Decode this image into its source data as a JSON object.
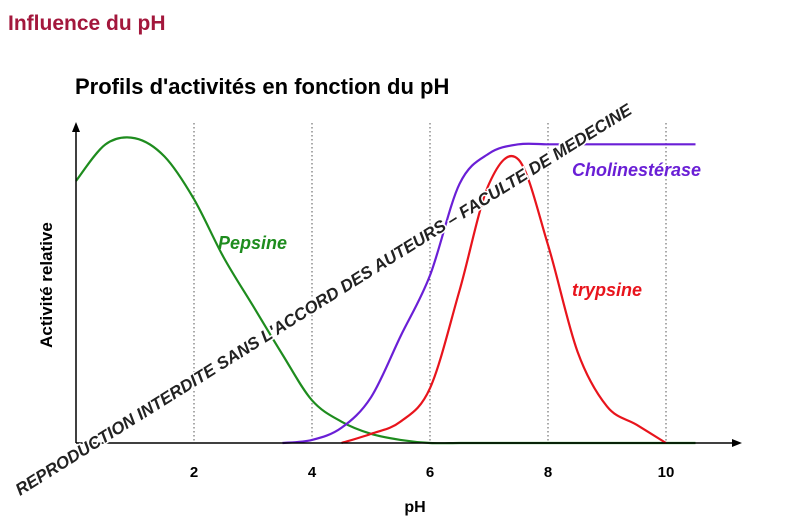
{
  "heading": "Influence du pH",
  "watermark": "REPRODUCTION INTERDITE SANS L'ACCORD DES AUTEURS – FACULTE DE MEDECINE",
  "chart_data": {
    "type": "line",
    "title": "Profils d'activités en fonction du pH",
    "x_label": "pH",
    "y_label": "Activité relative",
    "x": [
      0,
      0.5,
      1,
      1.5,
      2,
      2.5,
      3,
      3.5,
      4,
      4.5,
      5,
      5.5,
      6,
      6.5,
      7,
      7.5,
      8,
      8.5,
      9,
      9.5,
      10,
      10.5
    ],
    "series": [
      {
        "name": "Pepsine",
        "color": "#1e8c1e",
        "values": [
          0.86,
          0.98,
          1.0,
          0.94,
          0.8,
          0.61,
          0.45,
          0.29,
          0.14,
          0.07,
          0.03,
          0.01,
          0,
          0,
          0,
          0,
          0,
          0,
          0,
          0,
          0,
          0
        ]
      },
      {
        "name": "Cholinestérase",
        "color": "#6a1fd6",
        "values": [
          null,
          null,
          null,
          null,
          null,
          null,
          null,
          0,
          0.01,
          0.05,
          0.15,
          0.35,
          0.55,
          0.85,
          0.95,
          0.98,
          0.98,
          0.98,
          0.98,
          0.98,
          0.98,
          0.98
        ]
      },
      {
        "name": "trypsine",
        "color": "#e8141c",
        "values": [
          null,
          null,
          null,
          null,
          null,
          null,
          null,
          null,
          null,
          0,
          0.03,
          0.07,
          0.18,
          0.5,
          0.85,
          0.93,
          0.65,
          0.3,
          0.12,
          0.06,
          0,
          null
        ]
      }
    ],
    "xlim": [
      0,
      11.1
    ],
    "ylim": [
      0,
      1.05
    ],
    "xticks": [
      2,
      4,
      6,
      8,
      10
    ],
    "grid": true
  }
}
